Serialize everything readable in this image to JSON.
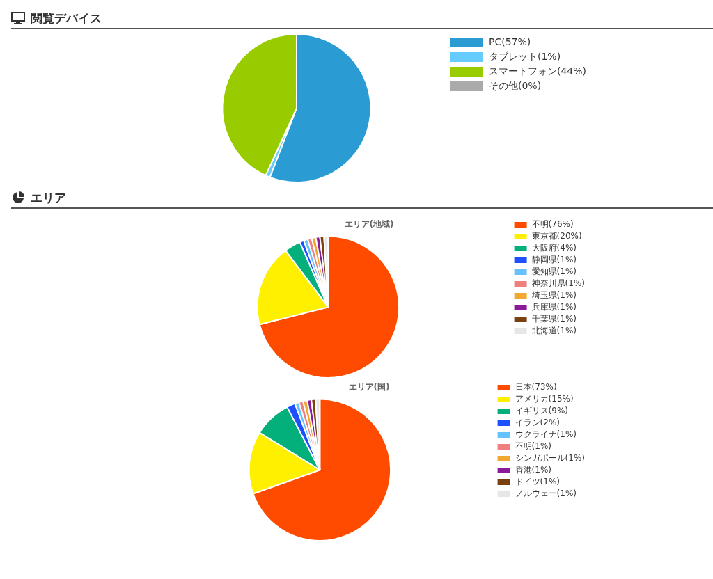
{
  "chart_data": [
    {
      "type": "pie",
      "title": "閲覧デバイス",
      "categories": [
        "PC(57%)",
        "タブレット(1%)",
        "スマートフォン(44%)",
        "その他(0%)"
      ],
      "values": [
        57,
        1,
        44,
        0
      ],
      "colors": [
        "#2b9bd3",
        "#66ccff",
        "#99cc00",
        "#aaaaaa"
      ],
      "legend": "right"
    },
    {
      "type": "other",
      "title": "エリア"
    },
    {
      "type": "pie",
      "subtitle": "エリア(地域)",
      "categories": [
        "不明(76%)",
        "東京都(20%)",
        "大阪府(4%)",
        "静岡県(1%)",
        "愛知県(1%)",
        "神奈川県(1%)",
        "埼玉県(1%)",
        "兵庫県(1%)",
        "千葉県(1%)",
        "北海道(1%)"
      ],
      "values": [
        76,
        20,
        4,
        1,
        1,
        1,
        1,
        1,
        1,
        1
      ],
      "colors": [
        "#ff4b00",
        "#fff000",
        "#03af7a",
        "#1e50ff",
        "#66c2ff",
        "#f08080",
        "#f0a830",
        "#8b1a9a",
        "#7a4010",
        "#e6e6e6"
      ],
      "legend": "right"
    },
    {
      "type": "pie",
      "subtitle": "エリア(国)",
      "categories": [
        "日本(73%)",
        "アメリカ(15%)",
        "イギリス(9%)",
        "イラン(2%)",
        "ウクライナ(1%)",
        "不明(1%)",
        "シンガポール(1%)",
        "香港(1%)",
        "ドイツ(1%)",
        "ノルウェー(1%)"
      ],
      "values": [
        73,
        15,
        9,
        2,
        1,
        1,
        1,
        1,
        1,
        1
      ],
      "colors": [
        "#ff4b00",
        "#fff000",
        "#03af7a",
        "#1e50ff",
        "#66c2ff",
        "#f08080",
        "#f0a830",
        "#8b1a9a",
        "#7a4010",
        "#e6e6e6"
      ],
      "legend": "right"
    }
  ]
}
